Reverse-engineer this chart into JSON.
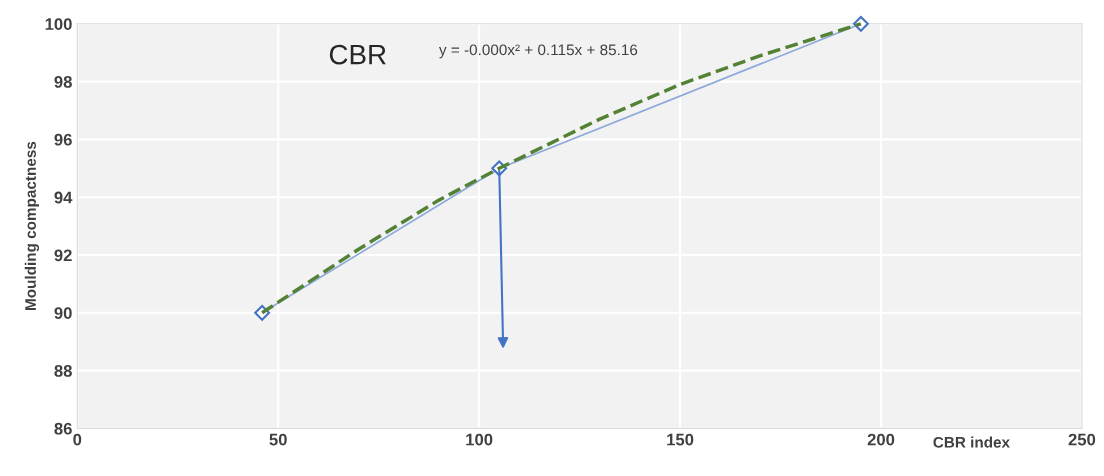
{
  "chart_data": {
    "type": "line",
    "title": "CBR",
    "xlabel": "CBR index",
    "ylabel": "Moulding compactness",
    "annotations": [
      "y = -0.000x² + 0.115x + 85.16"
    ],
    "xlim": [
      0,
      250
    ],
    "xticks": [
      0,
      50,
      100,
      150,
      200,
      250
    ],
    "ylim": [
      86,
      100
    ],
    "yticks": [
      86,
      88,
      90,
      92,
      94,
      96,
      98,
      100
    ],
    "grid": true,
    "legend": false,
    "series": [
      {
        "color": "#8eaadb",
        "marker": "diamond",
        "line_style": "solid",
        "x": [
          46,
          105,
          195
        ],
        "values": [
          90,
          95,
          100
        ]
      },
      {
        "type": "line",
        "color": "#548235",
        "marker": "none",
        "line_style": "dashed",
        "x": [
          46,
          70,
          90,
          105,
          130,
          150,
          170,
          195
        ],
        "values": [
          90.0,
          92.2,
          93.9,
          95.0,
          96.7,
          97.9,
          98.9,
          100.0
        ]
      }
    ]
  }
}
